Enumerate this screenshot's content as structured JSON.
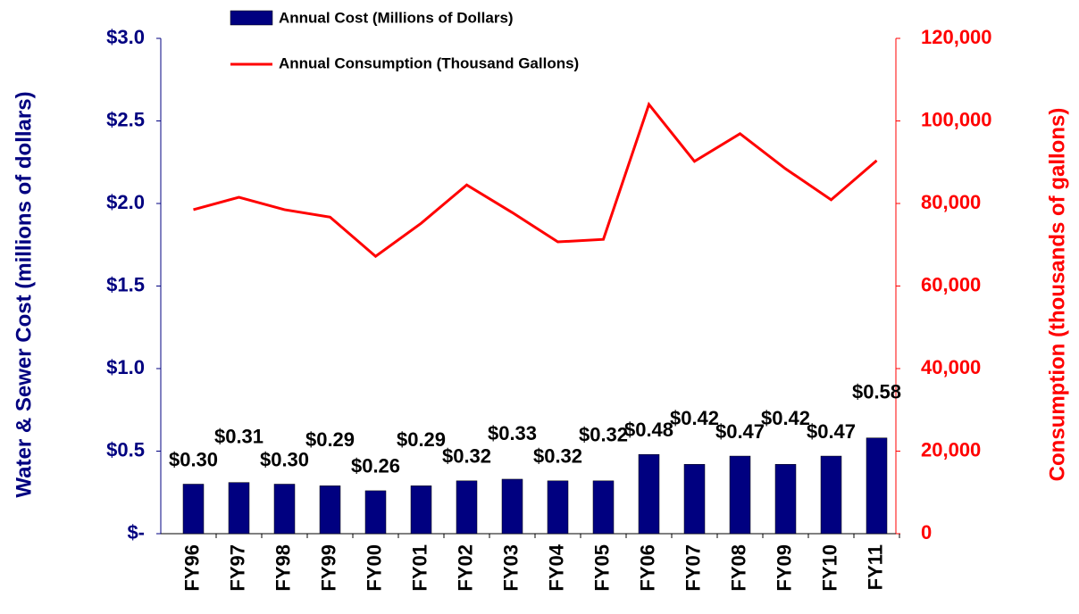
{
  "chart_data": {
    "type": "bar-line",
    "y_label": "Water & Sewer Cost (millions of dollars)",
    "y2_label": "Consumption (thousands of gallons)",
    "categories": [
      "FY96",
      "FY97",
      "FY98",
      "FY99",
      "FY00",
      "FY01",
      "FY02",
      "FY03",
      "FY04",
      "FY05",
      "FY06",
      "FY07",
      "FY08",
      "FY09",
      "FY10",
      "FY11"
    ],
    "series": [
      {
        "name": "Annual Cost (Millions of Dollars)",
        "type": "bar",
        "color": "#000080",
        "values": [
          0.3,
          0.31,
          0.3,
          0.29,
          0.26,
          0.29,
          0.32,
          0.33,
          0.32,
          0.32,
          0.48,
          0.42,
          0.47,
          0.42,
          0.47,
          0.58
        ],
        "value_labels": [
          "$0.30",
          "$0.31",
          "$0.30",
          "$0.29",
          "$0.26",
          "$0.29",
          "$0.32",
          "$0.33",
          "$0.32",
          "$0.32",
          "$0.48",
          "$0.42",
          "$0.47",
          "$0.42",
          "$0.47",
          "$0.58"
        ]
      },
      {
        "name": "Annual Consumption (Thousand Gallons)",
        "type": "line",
        "color": "#ff0000",
        "axis": "y2",
        "values": [
          78500,
          81500,
          78500,
          76700,
          67200,
          75200,
          84500,
          77800,
          70700,
          71300,
          104000,
          90200,
          96900,
          88400,
          80900,
          90400
        ]
      }
    ],
    "ylim": [
      0,
      3.0
    ],
    "yticks": [
      {
        "value": 0,
        "label": "$-"
      },
      {
        "value": 0.5,
        "label": "$0.5"
      },
      {
        "value": 1.0,
        "label": "$1.0"
      },
      {
        "value": 1.5,
        "label": "$1.5"
      },
      {
        "value": 2.0,
        "label": "$2.0"
      },
      {
        "value": 2.5,
        "label": "$2.5"
      },
      {
        "value": 3.0,
        "label": "$3.0"
      }
    ],
    "y2lim": [
      0,
      120000
    ],
    "y2ticks": [
      0,
      {
        "value": 20000,
        "label": "20,000"
      },
      {
        "value": 40000,
        "label": "40,000"
      },
      {
        "value": 60000,
        "label": "60,000"
      },
      {
        "value": 80000,
        "label": "80,000"
      },
      {
        "value": 100000,
        "label": "100,000"
      },
      {
        "value": 120000,
        "label": "120,000"
      }
    ],
    "grid": false
  }
}
